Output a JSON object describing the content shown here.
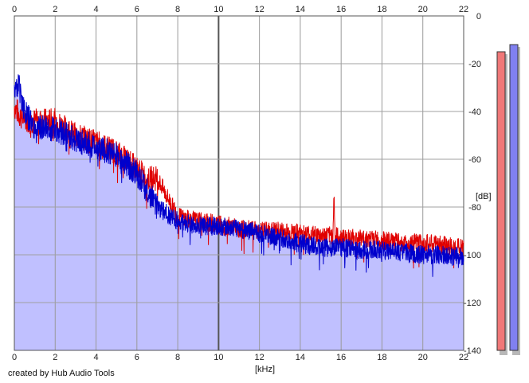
{
  "chart_data": {
    "type": "line",
    "xlabel": "[kHz]",
    "ylabel": "[dB]",
    "xlim": [
      0,
      22
    ],
    "ylim": [
      -140,
      0
    ],
    "x_ticks": [
      "0",
      "2",
      "4",
      "6",
      "8",
      "10",
      "12",
      "14",
      "16",
      "18",
      "20",
      "22"
    ],
    "y_ticks": [
      "0",
      "-20",
      "-40",
      "-60",
      "-80",
      "-100",
      "-120",
      "-140"
    ],
    "grid": true,
    "series": [
      {
        "color": "#e00000",
        "x": [
          0,
          0.3,
          0.8,
          1.5,
          2,
          3,
          4,
          5,
          6,
          6.5,
          7,
          8,
          9,
          10,
          11,
          12,
          13,
          14,
          15,
          15.6,
          15.65,
          15.7,
          16,
          17,
          18,
          19,
          20,
          21,
          22
        ],
        "values": [
          -38,
          -42,
          -44,
          -44,
          -44,
          -50,
          -53,
          -57,
          -64,
          -68,
          -68,
          -84,
          -86,
          -87,
          -89,
          -90,
          -90,
          -91,
          -92,
          -92,
          -74,
          -92,
          -93,
          -93,
          -94,
          -95,
          -95,
          -96,
          -97
        ]
      },
      {
        "color": "#0000cc",
        "x": [
          0,
          0.2,
          0.5,
          1,
          2,
          3,
          4,
          5,
          6,
          7,
          8,
          9,
          10,
          11,
          12,
          13,
          14,
          15,
          16,
          17,
          18,
          19,
          20,
          21,
          22
        ],
        "values": [
          -32,
          -28,
          -40,
          -47,
          -47,
          -52,
          -55,
          -58,
          -66,
          -80,
          -86,
          -88,
          -88,
          -89,
          -91,
          -93,
          -95,
          -97,
          -97,
          -98,
          -98,
          -99,
          -100,
          -100,
          -101
        ]
      }
    ],
    "level_meters": [
      {
        "color": "#f07878",
        "level_db": -15
      },
      {
        "color": "#8080f0",
        "level_db": -12
      }
    ],
    "fill_color": "#c0c0ff"
  },
  "footer": {
    "credit": "created by Hub Audio Tools"
  }
}
